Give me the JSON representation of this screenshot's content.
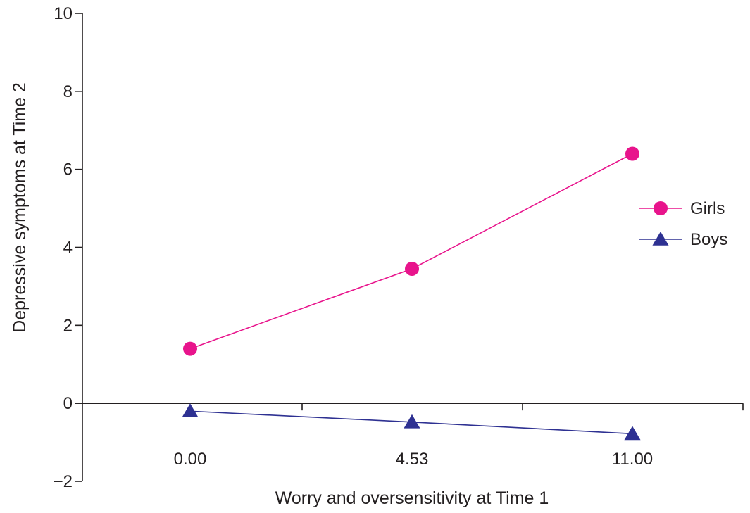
{
  "chart_data": {
    "type": "line",
    "title": "",
    "xlabel": "Worry and oversensitivity at Time 1",
    "ylabel": "Depressive symptoms at Time 2",
    "x": [
      "0.00",
      "4.53",
      "11.00"
    ],
    "x_ticks": [
      "0.00",
      "4.53",
      "11.00"
    ],
    "y_ticks": [
      "10",
      "8",
      "6",
      "4",
      "2",
      "0",
      "−2"
    ],
    "ylim": [
      -2,
      10
    ],
    "grid": false,
    "legend_position": "right",
    "series": [
      {
        "name": "Girls",
        "values": [
          1.4,
          3.45,
          6.4
        ],
        "color": "#e8148c",
        "marker": "circle"
      },
      {
        "name": "Boys",
        "values": [
          -0.2,
          -0.48,
          -0.78
        ],
        "color": "#2e3192",
        "marker": "triangle"
      }
    ]
  }
}
